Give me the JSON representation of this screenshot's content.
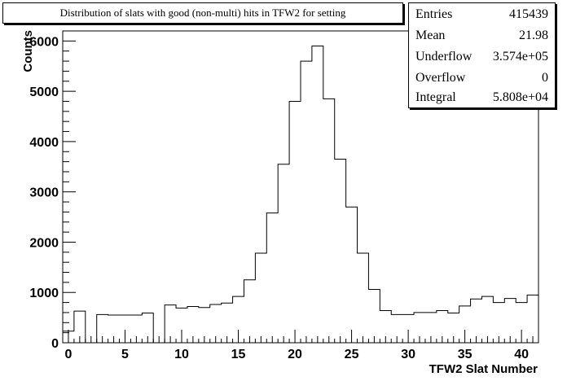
{
  "title": "Distribution of slats with good (non-multi) hits in TFW2 for setting",
  "stats": [
    {
      "label": "Entries",
      "value": "415439"
    },
    {
      "label": "Mean",
      "value": "21.98"
    },
    {
      "label": "Underflow",
      "value": "3.574e+05"
    },
    {
      "label": "Overflow",
      "value": "0"
    },
    {
      "label": "Integral",
      "value": "5.808e+04"
    }
  ],
  "chart_data": {
    "type": "histogram",
    "title": "Distribution of slats with good (non-multi) hits in TFW2 for setting",
    "xlabel": "TFW2 Slat Number",
    "ylabel": "Counts",
    "xlim": [
      -0.5,
      41.5
    ],
    "ylim": [
      0,
      6200
    ],
    "bin_width": 1,
    "bin_start": -0.5,
    "x_ticks": [
      0,
      5,
      10,
      15,
      20,
      25,
      30,
      35,
      40
    ],
    "y_ticks": [
      0,
      1000,
      2000,
      3000,
      4000,
      5000,
      6000
    ],
    "values": [
      230,
      630,
      0,
      560,
      550,
      550,
      550,
      590,
      0,
      750,
      690,
      720,
      700,
      760,
      790,
      920,
      1250,
      1780,
      2580,
      3550,
      4800,
      5600,
      5900,
      4850,
      3650,
      2700,
      1780,
      1060,
      640,
      560,
      560,
      600,
      600,
      640,
      590,
      730,
      870,
      920,
      800,
      880,
      800,
      950
    ],
    "grid": false
  }
}
